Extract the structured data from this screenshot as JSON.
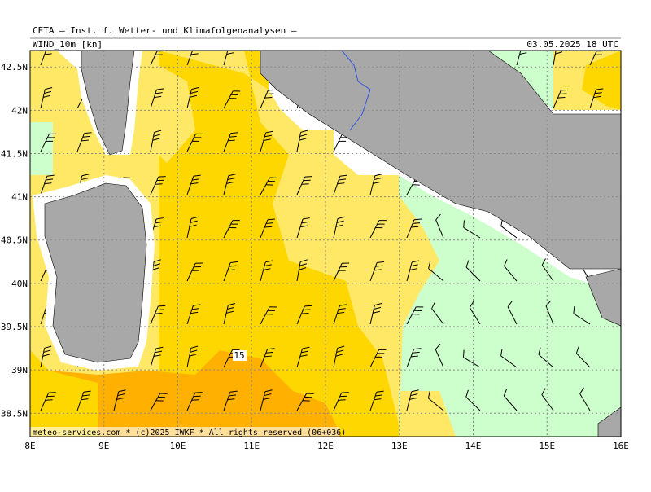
{
  "header": {
    "title": "CETA — Inst. f. Wetter- und Klimafolgenanalysen —",
    "parameter": "WIND_10m [kn]",
    "valid_time": "03.05.2025 18 UTC"
  },
  "map": {
    "xlim": [
      8,
      16
    ],
    "ylim": [
      38.23,
      42.69
    ],
    "xticks": [
      {
        "value": 8,
        "label": "8E"
      },
      {
        "value": 9,
        "label": "9E"
      },
      {
        "value": 10,
        "label": "10E"
      },
      {
        "value": 11,
        "label": "11E"
      },
      {
        "value": 12,
        "label": "12E"
      },
      {
        "value": 13,
        "label": "13E"
      },
      {
        "value": 14,
        "label": "14E"
      },
      {
        "value": 15,
        "label": "15E"
      },
      {
        "value": 16,
        "label": "16E"
      }
    ],
    "yticks": [
      {
        "value": 38.5,
        "label": "38.5N"
      },
      {
        "value": 39,
        "label": "39N"
      },
      {
        "value": 39.5,
        "label": "39.5N"
      },
      {
        "value": 40,
        "label": "40N"
      },
      {
        "value": 40.5,
        "label": "40.5N"
      },
      {
        "value": 41,
        "label": "41N"
      },
      {
        "value": 41.5,
        "label": "41.5N"
      },
      {
        "value": 42,
        "label": "42N"
      },
      {
        "value": 42.5,
        "label": "42.5N"
      }
    ],
    "contour_label": "15"
  },
  "footer": "meteo-services.com * (c)2025 IWKF * All rights reserved (06+036)"
}
